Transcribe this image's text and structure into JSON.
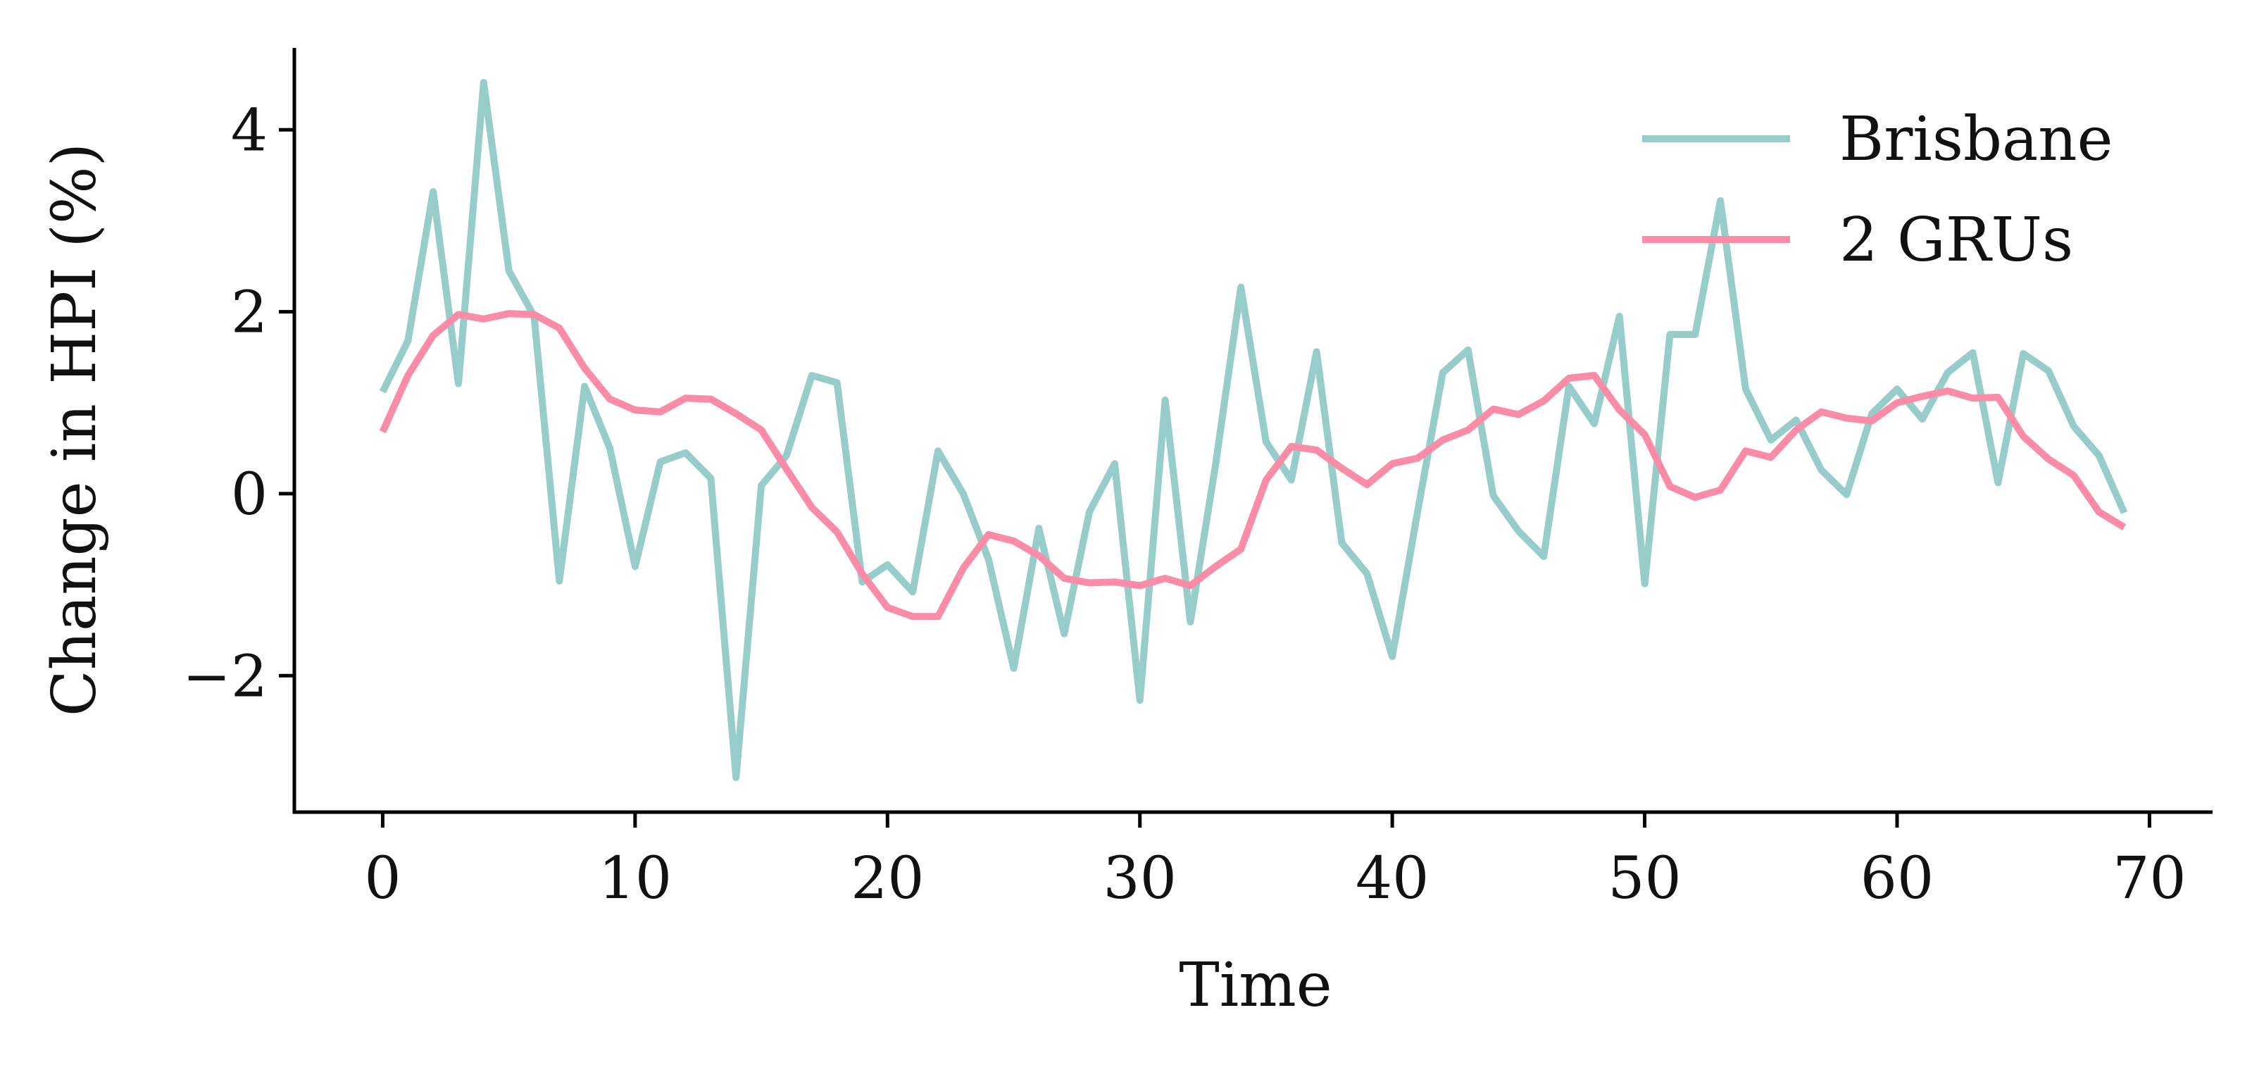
{
  "chart_data": {
    "type": "line",
    "xlabel": "Time",
    "ylabel": "Change in HPI (%)",
    "xlim": [
      -3.5,
      72.5
    ],
    "ylim": [
      -3.5,
      4.9
    ],
    "xticks": [
      0,
      10,
      20,
      30,
      40,
      50,
      60,
      70
    ],
    "yticks": [
      -2,
      0,
      2,
      4
    ],
    "ytick_labels": [
      "−2",
      "0",
      "2",
      "4"
    ],
    "grid": false,
    "legend_position": "top-right",
    "x": [
      0,
      1,
      2,
      3,
      4,
      5,
      6,
      7,
      8,
      9,
      10,
      11,
      12,
      13,
      14,
      15,
      16,
      17,
      18,
      19,
      20,
      21,
      22,
      23,
      24,
      25,
      26,
      27,
      28,
      29,
      30,
      31,
      32,
      33,
      34,
      35,
      36,
      37,
      38,
      39,
      40,
      41,
      42,
      43,
      44,
      45,
      46,
      47,
      48,
      49,
      50,
      51,
      52,
      53,
      54,
      55,
      56,
      57,
      58,
      59,
      60,
      61,
      62,
      63,
      64,
      65,
      66,
      67,
      68,
      69
    ],
    "series": [
      {
        "name": "Brisbane",
        "color": "#96cdcb",
        "values": [
          1.12,
          1.68,
          3.32,
          1.21,
          4.52,
          2.45,
          1.95,
          -0.96,
          1.18,
          0.5,
          -0.8,
          0.35,
          0.45,
          0.17,
          -3.12,
          0.09,
          0.42,
          1.3,
          1.22,
          -0.97,
          -0.78,
          -1.08,
          0.47,
          0.0,
          -0.72,
          -1.92,
          -0.38,
          -1.54,
          -0.2,
          0.33,
          -2.27,
          1.03,
          -1.41,
          0.32,
          2.27,
          0.57,
          0.15,
          1.56,
          -0.54,
          -0.88,
          -1.79,
          -0.2,
          1.33,
          1.58,
          -0.02,
          -0.41,
          -0.69,
          1.18,
          0.77,
          1.95,
          -0.99,
          1.75,
          1.75,
          3.22,
          1.15,
          0.59,
          0.81,
          0.26,
          -0.01,
          0.88,
          1.15,
          0.82,
          1.33,
          1.55,
          0.12,
          1.54,
          1.35,
          0.74,
          0.42,
          -0.21
        ]
      },
      {
        "name": "2 GRUs",
        "color": "#fa8ca8",
        "values": [
          0.68,
          1.3,
          1.74,
          1.97,
          1.92,
          1.98,
          1.97,
          1.82,
          1.38,
          1.04,
          0.92,
          0.9,
          1.05,
          1.04,
          0.88,
          0.7,
          0.27,
          -0.15,
          -0.42,
          -0.88,
          -1.25,
          -1.35,
          -1.35,
          -0.82,
          -0.45,
          -0.52,
          -0.68,
          -0.93,
          -0.98,
          -0.97,
          -1.01,
          -0.93,
          -1.01,
          -0.8,
          -0.61,
          0.15,
          0.52,
          0.48,
          0.28,
          0.1,
          0.33,
          0.39,
          0.59,
          0.7,
          0.93,
          0.87,
          1.02,
          1.27,
          1.3,
          0.92,
          0.65,
          0.08,
          -0.04,
          0.04,
          0.47,
          0.4,
          0.7,
          0.9,
          0.83,
          0.8,
          1.0,
          1.07,
          1.13,
          1.05,
          1.06,
          0.63,
          0.38,
          0.2,
          -0.2,
          -0.37
        ]
      }
    ]
  }
}
